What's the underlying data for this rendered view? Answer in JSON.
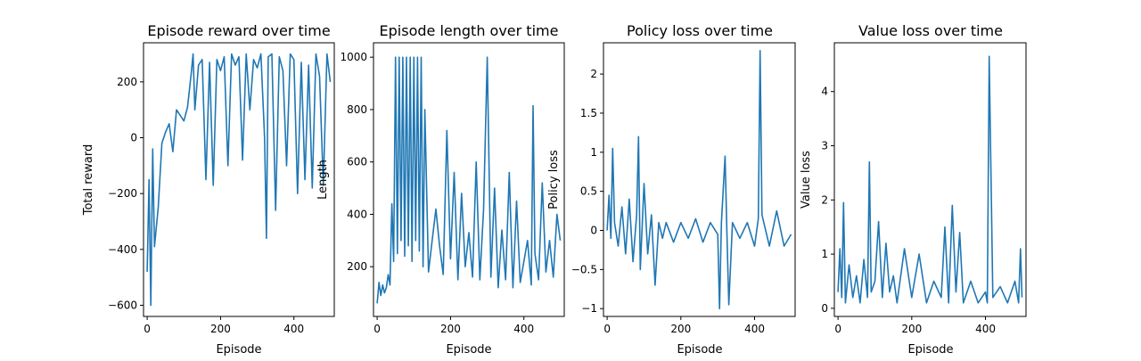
{
  "series_color": "#1f77b4",
  "chart_data": [
    {
      "type": "line",
      "title": "Episode reward over time",
      "xlabel": "Episode",
      "ylabel": "Total reward",
      "xlim": [
        -10,
        510
      ],
      "ylim": [
        -640,
        340
      ],
      "xticks": [
        0,
        200,
        400
      ],
      "yticks": [
        -600,
        -400,
        -200,
        0,
        200
      ],
      "x": [
        0,
        5,
        10,
        15,
        20,
        30,
        40,
        50,
        60,
        70,
        80,
        90,
        100,
        110,
        120,
        125,
        130,
        140,
        150,
        160,
        170,
        180,
        190,
        200,
        210,
        220,
        230,
        240,
        250,
        260,
        270,
        280,
        290,
        300,
        310,
        320,
        325,
        330,
        340,
        350,
        360,
        370,
        380,
        390,
        400,
        410,
        420,
        430,
        440,
        450,
        460,
        470,
        480,
        490,
        499
      ],
      "values": [
        -480,
        -150,
        -600,
        -40,
        -390,
        -250,
        -20,
        20,
        50,
        -50,
        100,
        80,
        60,
        110,
        230,
        300,
        100,
        260,
        280,
        -150,
        270,
        -170,
        280,
        240,
        290,
        -100,
        300,
        260,
        290,
        -80,
        300,
        100,
        280,
        250,
        300,
        0,
        -360,
        290,
        300,
        -260,
        290,
        240,
        -100,
        300,
        280,
        -200,
        270,
        -150,
        260,
        -180,
        300,
        220,
        -170,
        300,
        200
      ]
    },
    {
      "type": "line",
      "title": "Episode length over time",
      "xlabel": "Episode",
      "ylabel": "Length",
      "xlim": [
        -10,
        510
      ],
      "ylim": [
        10,
        1055
      ],
      "xticks": [
        0,
        200,
        400
      ],
      "yticks": [
        200,
        400,
        600,
        800,
        1000
      ],
      "x": [
        0,
        5,
        10,
        15,
        20,
        25,
        30,
        35,
        40,
        45,
        50,
        55,
        60,
        65,
        70,
        75,
        80,
        85,
        90,
        95,
        100,
        105,
        110,
        115,
        120,
        125,
        130,
        140,
        150,
        160,
        170,
        180,
        190,
        200,
        210,
        220,
        230,
        240,
        250,
        260,
        270,
        280,
        290,
        300,
        310,
        320,
        330,
        340,
        350,
        360,
        370,
        380,
        390,
        400,
        410,
        420,
        425,
        430,
        440,
        450,
        460,
        470,
        480,
        490,
        499
      ],
      "values": [
        60,
        140,
        90,
        130,
        100,
        120,
        170,
        130,
        440,
        220,
        1000,
        250,
        1000,
        300,
        1000,
        240,
        1000,
        280,
        1000,
        220,
        1000,
        300,
        1000,
        260,
        1000,
        200,
        800,
        180,
        300,
        420,
        280,
        170,
        720,
        230,
        560,
        150,
        480,
        200,
        330,
        160,
        600,
        150,
        420,
        1000,
        160,
        500,
        120,
        340,
        150,
        560,
        120,
        450,
        140,
        220,
        300,
        130,
        815,
        250,
        150,
        520,
        180,
        300,
        160,
        400,
        300
      ]
    },
    {
      "type": "line",
      "title": "Policy loss over time",
      "xlabel": "Episode",
      "ylabel": "Policy loss",
      "xlim": [
        -10,
        510
      ],
      "ylim": [
        -1.1,
        2.4
      ],
      "xticks": [
        0,
        200,
        400
      ],
      "yticks": [
        -1.0,
        -0.5,
        0.0,
        0.5,
        1.0,
        1.5,
        2.0
      ],
      "x": [
        0,
        5,
        10,
        15,
        20,
        30,
        40,
        50,
        60,
        70,
        80,
        85,
        90,
        100,
        110,
        120,
        130,
        140,
        150,
        160,
        180,
        200,
        220,
        240,
        260,
        280,
        300,
        305,
        310,
        320,
        325,
        330,
        340,
        360,
        380,
        400,
        410,
        415,
        420,
        440,
        460,
        480,
        499
      ],
      "values": [
        0.0,
        0.45,
        -0.1,
        1.05,
        0.1,
        -0.2,
        0.3,
        -0.3,
        0.4,
        -0.4,
        0.2,
        1.2,
        -0.5,
        0.6,
        -0.3,
        0.2,
        -0.7,
        0.1,
        -0.1,
        0.1,
        -0.15,
        0.1,
        -0.1,
        0.15,
        -0.15,
        0.1,
        -0.05,
        -1.0,
        0.1,
        0.95,
        -0.05,
        -0.95,
        0.1,
        -0.1,
        0.1,
        -0.2,
        0.15,
        2.3,
        0.2,
        -0.2,
        0.25,
        -0.2,
        -0.05
      ]
    },
    {
      "type": "line",
      "title": "Value loss over time",
      "xlabel": "Episode",
      "ylabel": "Value loss",
      "xlim": [
        -10,
        510
      ],
      "ylim": [
        -0.15,
        4.9
      ],
      "xticks": [
        0,
        200,
        400
      ],
      "yticks": [
        0,
        1,
        2,
        3,
        4
      ],
      "x": [
        0,
        5,
        10,
        15,
        20,
        30,
        40,
        50,
        60,
        70,
        80,
        85,
        90,
        100,
        110,
        120,
        130,
        140,
        150,
        160,
        180,
        200,
        220,
        240,
        260,
        280,
        290,
        300,
        310,
        320,
        330,
        340,
        360,
        380,
        400,
        405,
        410,
        420,
        440,
        460,
        480,
        490,
        495,
        499
      ],
      "values": [
        0.3,
        1.1,
        0.2,
        1.95,
        0.1,
        0.8,
        0.2,
        0.6,
        0.1,
        0.9,
        0.2,
        2.7,
        0.3,
        0.5,
        1.6,
        0.2,
        1.2,
        0.3,
        0.6,
        0.1,
        1.1,
        0.2,
        1.0,
        0.1,
        0.5,
        0.2,
        1.5,
        0.1,
        1.9,
        0.3,
        1.4,
        0.1,
        0.5,
        0.1,
        0.3,
        0.1,
        4.65,
        0.2,
        0.4,
        0.1,
        0.5,
        0.1,
        1.1,
        0.2
      ]
    }
  ]
}
